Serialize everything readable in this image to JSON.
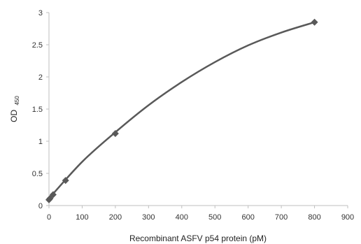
{
  "chart_data": {
    "type": "scatter",
    "title": "",
    "xlabel": "Recombinant ASFV p54 protein (pM)",
    "ylabel": "OD",
    "ylabel_subscript": "450",
    "xlim": [
      0,
      900
    ],
    "ylim": [
      0,
      3
    ],
    "x_ticks": [
      "0",
      "100",
      "200",
      "300",
      "400",
      "500",
      "600",
      "700",
      "800",
      "900"
    ],
    "y_ticks": [
      "0",
      "0.5",
      "1",
      "1.5",
      "2",
      "2.5",
      "3"
    ],
    "grid": false,
    "legend": "none",
    "series": [
      {
        "marker": "diamond",
        "color": "#595959",
        "x": [
          0,
          3.125,
          12.5,
          50,
          200,
          800
        ],
        "y": [
          0.09,
          0.11,
          0.17,
          0.39,
          1.12,
          2.85
        ]
      }
    ],
    "fit_curve": {
      "style": "smooth",
      "color": "#595959",
      "x": [
        0,
        100,
        200,
        300,
        400,
        500,
        600,
        700,
        800
      ],
      "y": [
        0.11,
        0.68,
        1.14,
        1.56,
        1.92,
        2.23,
        2.49,
        2.69,
        2.85
      ]
    }
  }
}
